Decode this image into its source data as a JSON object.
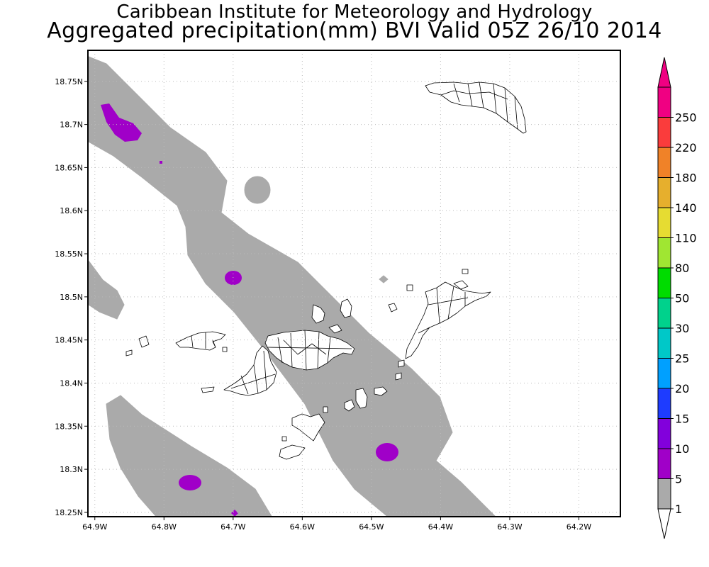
{
  "header": {
    "institute": "Caribbean Institute for Meteorology and Hydrology",
    "product": "Aggregated precipitation(mm) BVI Valid 05Z 26/10 2014"
  },
  "map": {
    "lon_range": [
      -64.91,
      -64.14
    ],
    "lat_range": [
      18.245,
      18.786
    ],
    "lon_ticks": [
      {
        "value": -64.9,
        "label": "64.9W"
      },
      {
        "value": -64.8,
        "label": "64.8W"
      },
      {
        "value": -64.7,
        "label": "64.7W"
      },
      {
        "value": -64.6,
        "label": "64.6W"
      },
      {
        "value": -64.5,
        "label": "64.5W"
      },
      {
        "value": -64.4,
        "label": "64.4W"
      },
      {
        "value": -64.3,
        "label": "64.3W"
      },
      {
        "value": -64.2,
        "label": "64.2W"
      }
    ],
    "lat_ticks": [
      {
        "value": 18.25,
        "label": "18.25N"
      },
      {
        "value": 18.3,
        "label": "18.3N"
      },
      {
        "value": 18.35,
        "label": "18.35N"
      },
      {
        "value": 18.4,
        "label": "18.4N"
      },
      {
        "value": 18.45,
        "label": "18.45N"
      },
      {
        "value": 18.5,
        "label": "18.5N"
      },
      {
        "value": 18.55,
        "label": "18.55N"
      },
      {
        "value": 18.6,
        "label": "18.6N"
      },
      {
        "value": 18.65,
        "label": "18.65N"
      },
      {
        "value": 18.7,
        "label": "18.7N"
      },
      {
        "value": 18.75,
        "label": "18.75N"
      }
    ],
    "grid": true
  },
  "colorbar": {
    "levels": [
      {
        "label": "1",
        "color": "#aaaaaa"
      },
      {
        "label": "5",
        "color": "#a000c8"
      },
      {
        "label": "10",
        "color": "#8200dc"
      },
      {
        "label": "15",
        "color": "#1e3cff"
      },
      {
        "label": "20",
        "color": "#00a0ff"
      },
      {
        "label": "25",
        "color": "#00c8c8"
      },
      {
        "label": "30",
        "color": "#00d28c"
      },
      {
        "label": "50",
        "color": "#00dc00"
      },
      {
        "label": "80",
        "color": "#a0e632"
      },
      {
        "label": "110",
        "color": "#e6dc32"
      },
      {
        "label": "140",
        "color": "#e6af2d"
      },
      {
        "label": "180",
        "color": "#f08228"
      },
      {
        "label": "220",
        "color": "#fa3c3c"
      },
      {
        "label": "250",
        "color": "#f00082"
      }
    ],
    "below_color": "#ffffff",
    "above_color": "#f00082"
  },
  "colors": {
    "rain_1_5mm": "#aaaaaa",
    "rain_5_10mm": "#a000c8",
    "land_fill": "#ffffff",
    "land_edge": "#000000",
    "grid": "#bbbbbb"
  }
}
